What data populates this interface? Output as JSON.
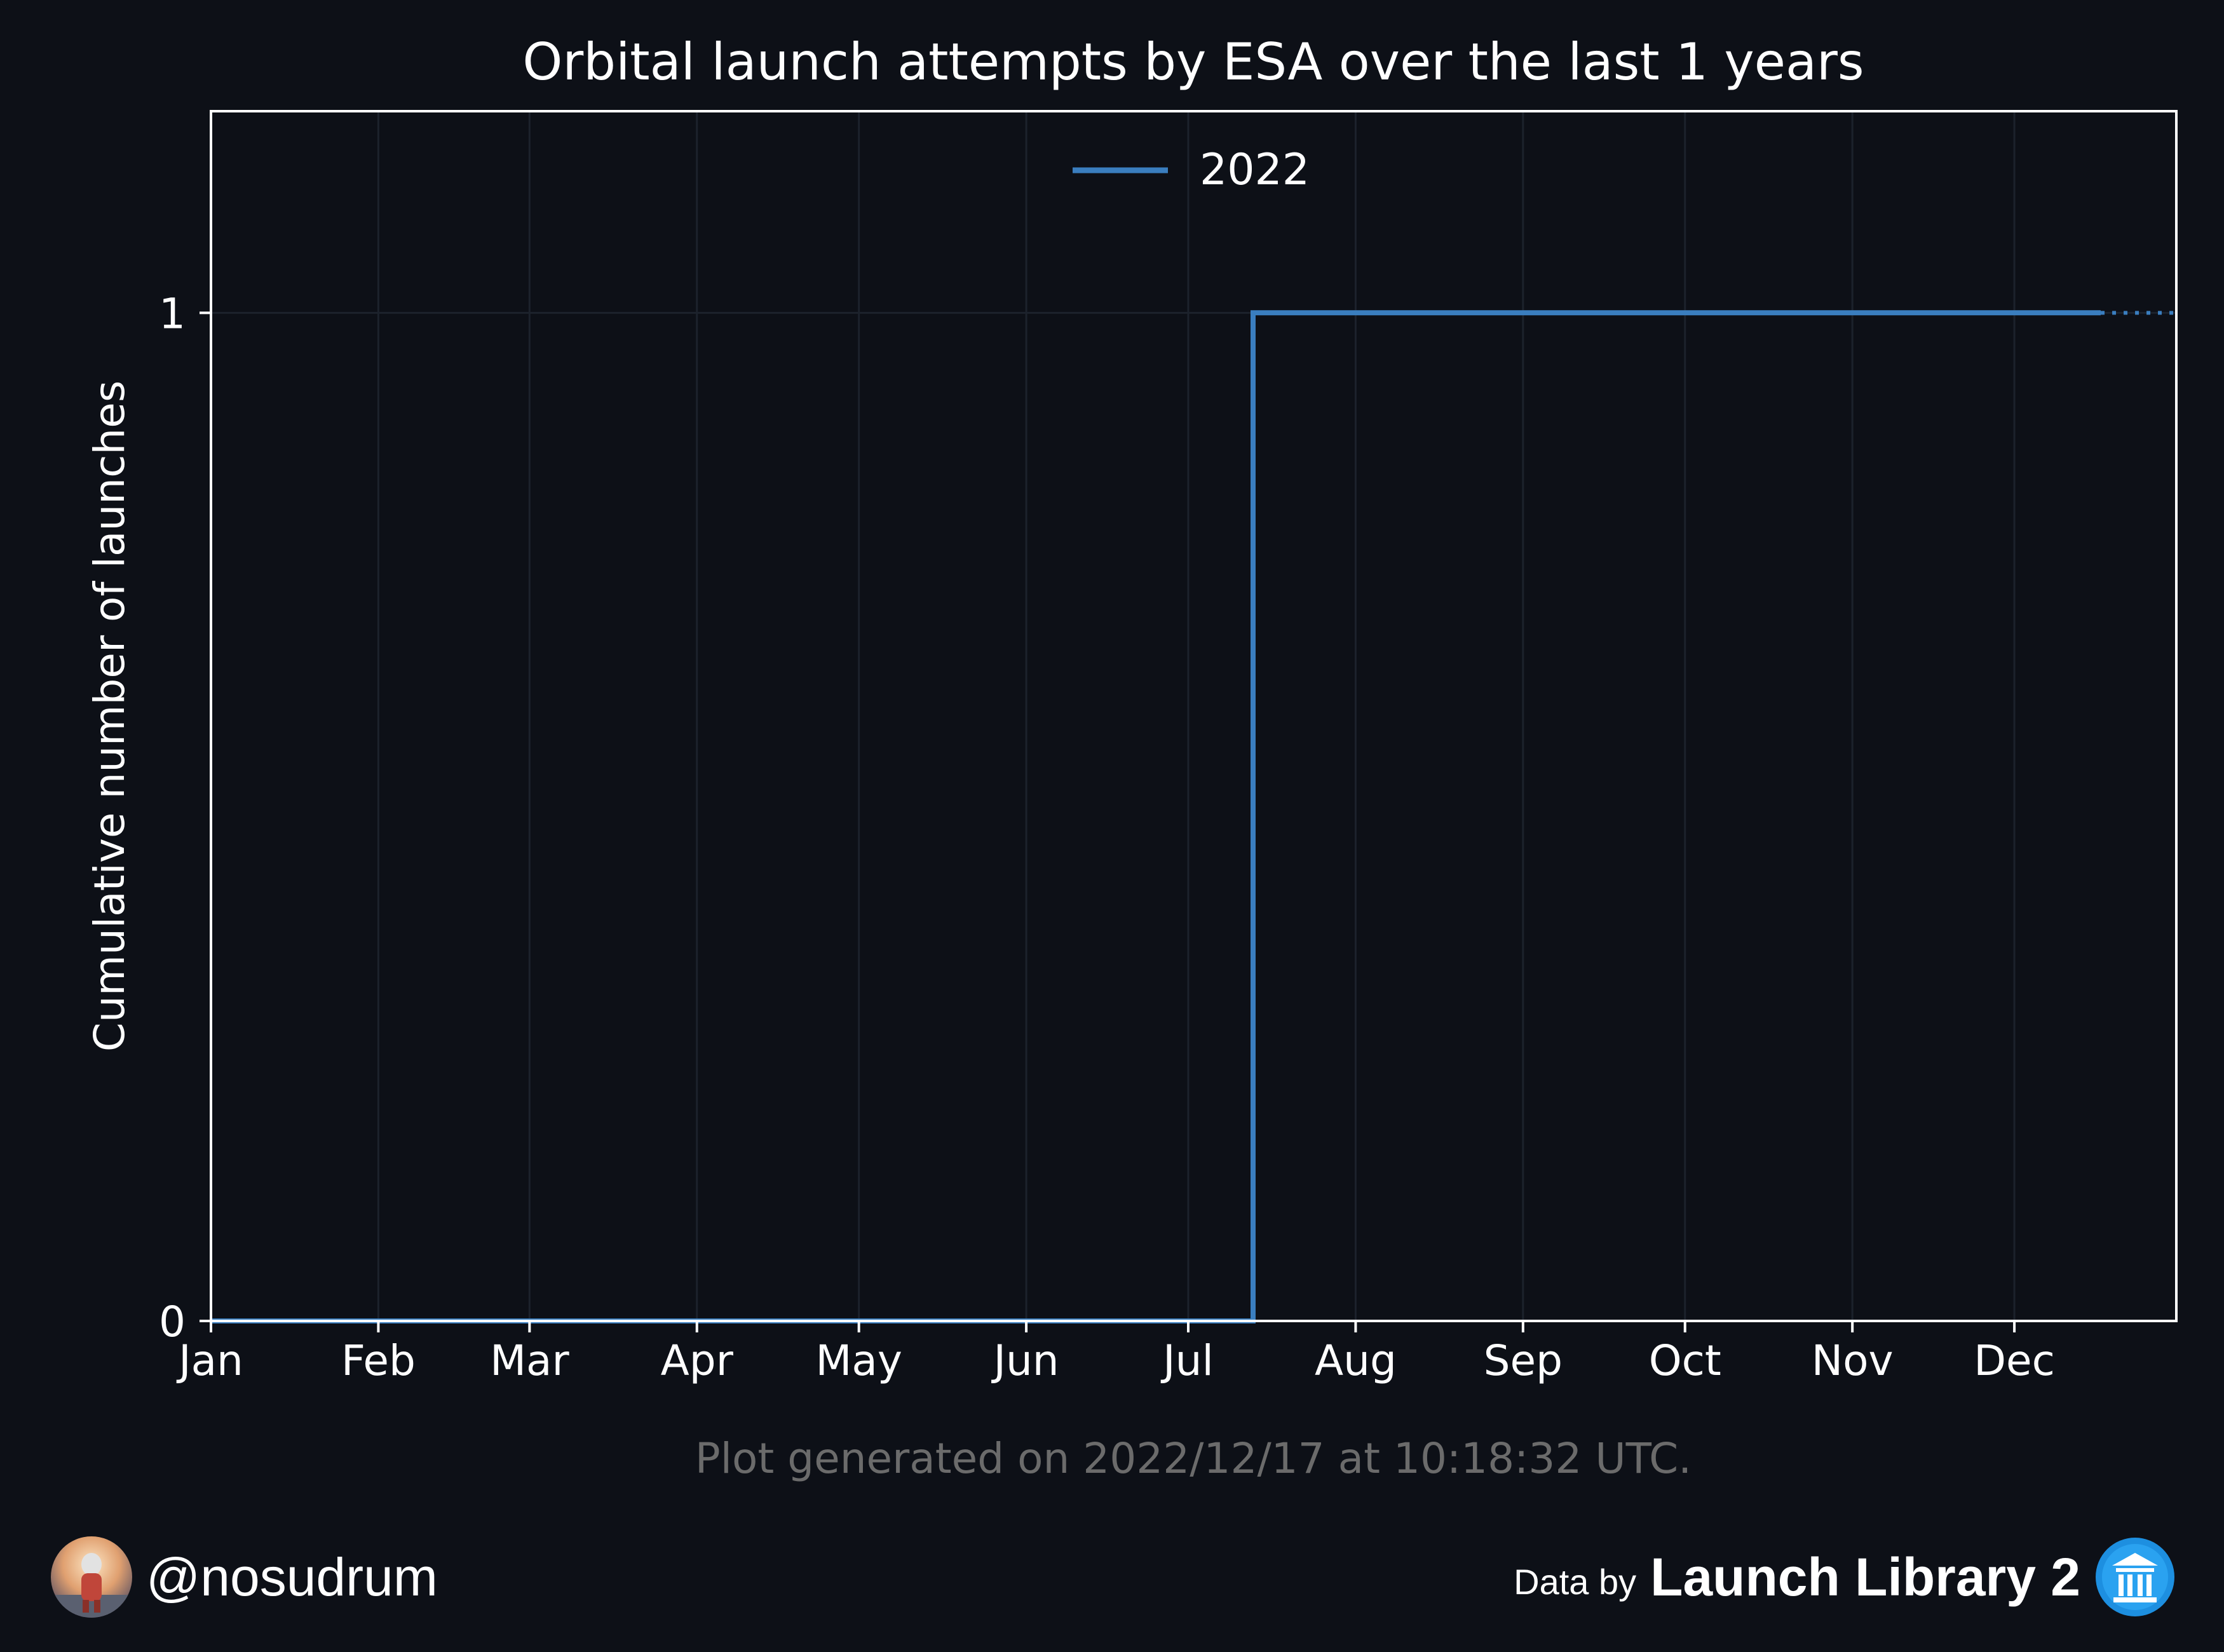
{
  "chart_data": {
    "type": "line",
    "title": "Orbital launch attempts by ESA over the last 1 years",
    "ylabel": "Cumulative number of launches",
    "xlabel": "",
    "x_tick_labels": [
      "Jan",
      "Feb",
      "Mar",
      "Apr",
      "May",
      "Jun",
      "Jul",
      "Aug",
      "Sep",
      "Oct",
      "Nov",
      "Dec"
    ],
    "y_tick_labels": [
      "0",
      "1"
    ],
    "xlim": [
      "2022-01-01",
      "2022-12-31"
    ],
    "ylim": [
      0,
      1.2
    ],
    "grid": true,
    "legend_placement": "top-center",
    "series": [
      {
        "name": "2022",
        "color": "#3a7ebf",
        "step": true,
        "points": [
          {
            "x": "2022-01-01",
            "y": 0
          },
          {
            "x": "2022-07-13",
            "y": 0
          },
          {
            "x": "2022-07-13",
            "y": 1
          },
          {
            "x": "2022-12-17",
            "y": 1
          }
        ],
        "projection": {
          "from": "2022-12-17",
          "to": "2022-12-31",
          "y": 1,
          "style": "dotted"
        }
      }
    ]
  },
  "caption": "Plot generated on 2022/12/17 at 10:18:32 UTC.",
  "footer": {
    "handle": "@nosudrum",
    "data_by": "Data by",
    "brand": "Launch Library 2",
    "avatar_icon": "astronaut-avatar-icon",
    "brand_icon": "launch-library-logo-icon"
  },
  "colors": {
    "background": "#0d1017",
    "axes": "#ffffff",
    "grid": "#1c222c",
    "caption": "#6b6b6b",
    "line": "#3a7ebf"
  }
}
